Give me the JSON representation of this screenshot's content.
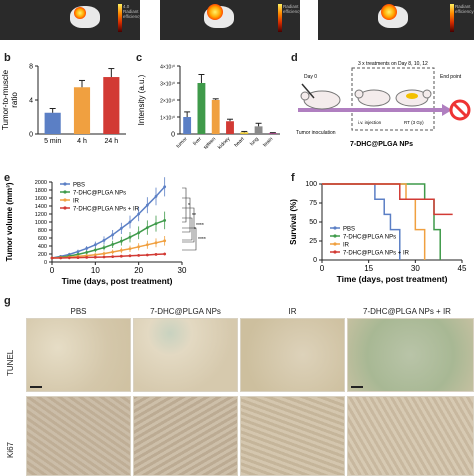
{
  "panel_letters": {
    "b": "b",
    "c": "c",
    "d": "d",
    "e": "e",
    "f": "f",
    "g": "g"
  },
  "top_strip": {
    "colorbar_lines": [
      "4.0",
      "Radiant",
      "efficiency"
    ]
  },
  "chart_data": [
    {
      "id": "b",
      "type": "bar",
      "categories": [
        "5 min",
        "4 h",
        "24 h"
      ],
      "values": [
        2.5,
        5.5,
        6.7
      ],
      "errors": [
        0.5,
        0.8,
        1.0
      ],
      "colors": [
        "#5b7fc5",
        "#f0a040",
        "#d23a34"
      ],
      "ylabel": "Tumor-to-muscle\nratio",
      "ylim": [
        0,
        8
      ],
      "yticks": [
        0,
        4,
        8
      ]
    },
    {
      "id": "c",
      "type": "bar",
      "categories": [
        "tumor",
        "liver",
        "spleen",
        "kidney",
        "heart",
        "lung",
        "brain"
      ],
      "values": [
        1.0,
        3.0,
        2.0,
        0.75,
        0.1,
        0.45,
        0.05
      ],
      "errors": [
        0.3,
        0.5,
        0.07,
        0.12,
        0.05,
        0.18,
        0.03
      ],
      "colors": [
        "#5b7fc5",
        "#3f9a4a",
        "#f0a040",
        "#d23a34",
        "#e6c430",
        "#8a8a8a",
        "#b03a8a"
      ],
      "ylabel": "Intensity (a.u.)",
      "ylim": [
        0,
        4
      ],
      "yticks": [
        "0",
        "1×10¹⁰",
        "2×10¹⁰",
        "3×10¹⁰",
        "4×10¹⁰"
      ]
    },
    {
      "id": "e",
      "type": "line",
      "xlabel": "Time (days, post treatment)",
      "ylabel": "Tumor volume (mm³)",
      "xlim": [
        0,
        30
      ],
      "ylim": [
        0,
        2000
      ],
      "xticks": [
        0,
        10,
        20,
        30
      ],
      "yticks": [
        0,
        200,
        400,
        600,
        800,
        1000,
        1200,
        1400,
        1600,
        1800,
        2000
      ],
      "x": [
        0,
        2,
        4,
        6,
        8,
        10,
        12,
        14,
        16,
        18,
        20,
        22,
        24,
        26
      ],
      "series": [
        {
          "name": "PBS",
          "color": "#5b7fc5",
          "values": [
            100,
            140,
            190,
            260,
            340,
            430,
            540,
            680,
            840,
            1000,
            1200,
            1420,
            1640,
            1880
          ],
          "err": [
            20,
            30,
            40,
            50,
            60,
            80,
            100,
            120,
            140,
            160,
            180,
            200,
            220,
            240
          ]
        },
        {
          "name": "7-DHC@PLGA NPs",
          "color": "#3f9a4a",
          "values": [
            100,
            120,
            150,
            190,
            240,
            300,
            360,
            440,
            520,
            620,
            730,
            860,
            960,
            1040
          ],
          "err": [
            20,
            25,
            30,
            40,
            50,
            60,
            70,
            90,
            110,
            130,
            160,
            180,
            200,
            220
          ]
        },
        {
          "name": "IR",
          "color": "#f0a040",
          "values": [
            100,
            110,
            120,
            140,
            160,
            180,
            210,
            250,
            290,
            330,
            380,
            430,
            480,
            530
          ],
          "err": [
            15,
            20,
            25,
            30,
            35,
            40,
            50,
            60,
            70,
            80,
            90,
            100,
            110,
            120
          ]
        },
        {
          "name": "7-DHC@PLGA NPs + IR",
          "color": "#d23a34",
          "values": [
            100,
            100,
            105,
            110,
            115,
            120,
            125,
            135,
            145,
            155,
            165,
            175,
            190,
            200
          ],
          "err": [
            10,
            10,
            12,
            14,
            16,
            18,
            20,
            22,
            24,
            26,
            28,
            30,
            32,
            34
          ]
        }
      ],
      "sig": [
        "*",
        "**",
        "****",
        "*",
        "****"
      ]
    },
    {
      "id": "f",
      "type": "line",
      "xlabel": "Time (days, post treatment)",
      "ylabel": "Survival (%)",
      "xlim": [
        0,
        45
      ],
      "ylim": [
        0,
        100
      ],
      "xticks": [
        0,
        15,
        30,
        45
      ],
      "yticks": [
        0,
        25,
        50,
        75,
        100
      ],
      "series": [
        {
          "name": "PBS",
          "color": "#5b7fc5",
          "steps": [
            [
              0,
              100
            ],
            [
              17,
              100
            ],
            [
              17,
              80
            ],
            [
              20,
              80
            ],
            [
              20,
              60
            ],
            [
              22,
              60
            ],
            [
              22,
              40
            ],
            [
              25,
              40
            ],
            [
              25,
              0
            ]
          ]
        },
        {
          "name": "7-DHC@PLGA NPs",
          "color": "#3f9a4a",
          "steps": [
            [
              0,
              100
            ],
            [
              33,
              100
            ],
            [
              33,
              80
            ],
            [
              36,
              80
            ],
            [
              36,
              40
            ],
            [
              38,
              40
            ],
            [
              38,
              0
            ]
          ]
        },
        {
          "name": "IR",
          "color": "#f0a040",
          "steps": [
            [
              0,
              100
            ],
            [
              27,
              100
            ],
            [
              27,
              80
            ],
            [
              30,
              80
            ],
            [
              30,
              40
            ],
            [
              33,
              40
            ],
            [
              33,
              0
            ]
          ]
        },
        {
          "name": "7-DHC@PLGA NPs + IR",
          "color": "#d23a34",
          "steps": [
            [
              0,
              100
            ],
            [
              25,
              100
            ],
            [
              25,
              80
            ],
            [
              36,
              80
            ],
            [
              36,
              60
            ],
            [
              42,
              60
            ]
          ]
        }
      ]
    }
  ],
  "schematic_d": {
    "day0": "Day 0",
    "treat": "3 x treatments on Day 8, 10, 12",
    "endpoint": "End point",
    "inoc": "Tumor inoculation",
    "iv": "i.v. injection",
    "rt": "RT (3 Gy)",
    "title": "7-DHC@PLGA NPs"
  },
  "panel_g": {
    "columns": [
      "PBS",
      "7-DHC@PLGA NPs",
      "IR",
      "7-DHC@PLGA NPs + IR"
    ],
    "rows": [
      "TUNEL",
      "Ki67"
    ]
  }
}
